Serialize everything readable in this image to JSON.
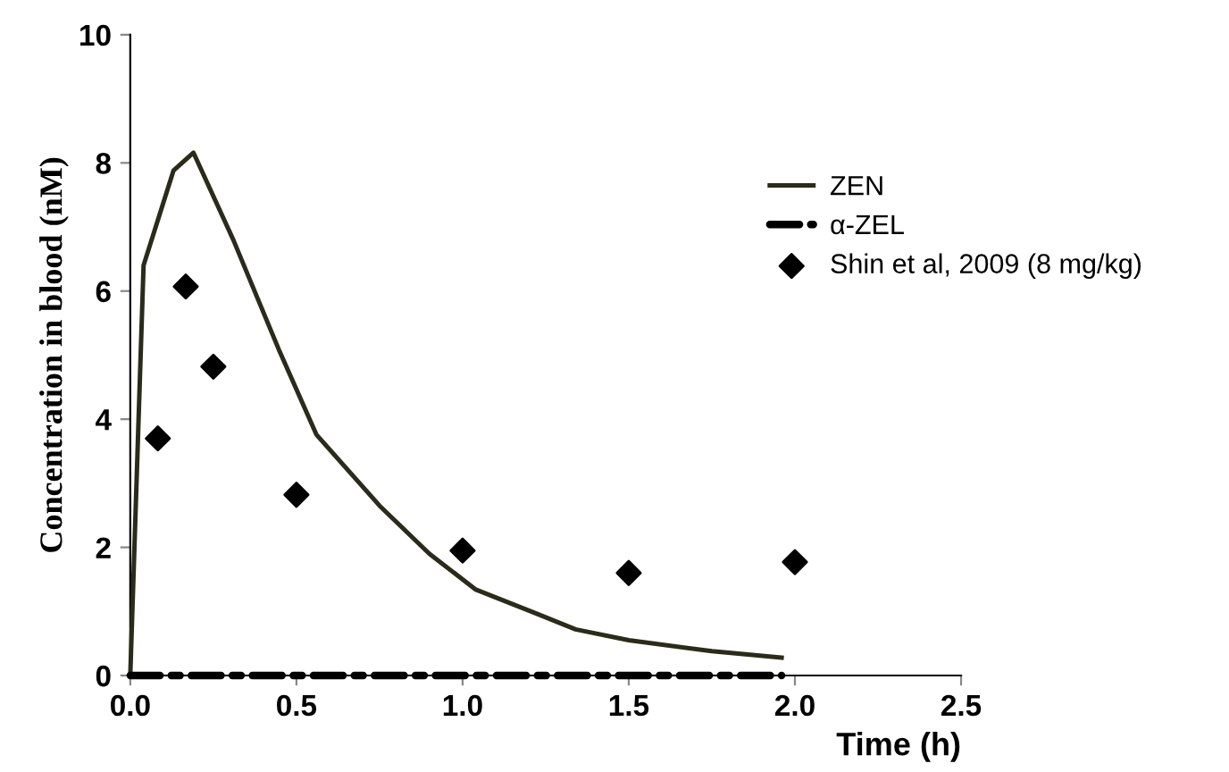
{
  "chart_data": {
    "type": "line",
    "xlabel": "Time (h)",
    "ylabel": "Concentration in blood (nM)",
    "xlim": [
      0,
      2.5
    ],
    "ylim": [
      0,
      10
    ],
    "xticks": [
      {
        "value": 0,
        "label": "0.0"
      },
      0.5,
      {
        "value": 1,
        "label": "1.0"
      },
      1.5,
      {
        "value": 2,
        "label": "2.0"
      },
      2.5
    ],
    "yticks": [
      0,
      2,
      4,
      6,
      8,
      10
    ],
    "grid": false,
    "legend": "right",
    "series": [
      {
        "name": "ZEN",
        "color": "#2b2b1a",
        "line_style": "solid",
        "x": [
          0,
          0.04,
          0.13,
          0.19,
          0.31,
          0.45,
          0.56,
          0.75,
          0.9,
          1.04,
          1.22,
          1.34,
          1.5,
          1.75,
          1.96
        ],
        "values": [
          0,
          6.4,
          7.88,
          8.16,
          6.8,
          5.05,
          3.76,
          2.65,
          1.9,
          1.34,
          0.97,
          0.72,
          0.55,
          0.38,
          0.28
        ]
      },
      {
        "name": "α-ZEL",
        "color": "#000000",
        "line_style": "dashed",
        "x": [
          0,
          0.5,
          1,
          1.5,
          1.96
        ],
        "values": [
          0,
          0,
          0,
          0,
          0
        ]
      },
      {
        "name": "Shin et al, 2009 (8 mg/kg)",
        "type": "scatter",
        "color": "#000000",
        "marker": "diamond",
        "x": [
          0.083,
          0.167,
          0.25,
          0.5,
          1,
          1.5,
          2
        ],
        "values": [
          3.7,
          6.07,
          4.82,
          2.82,
          1.95,
          1.6,
          1.77
        ]
      }
    ]
  }
}
